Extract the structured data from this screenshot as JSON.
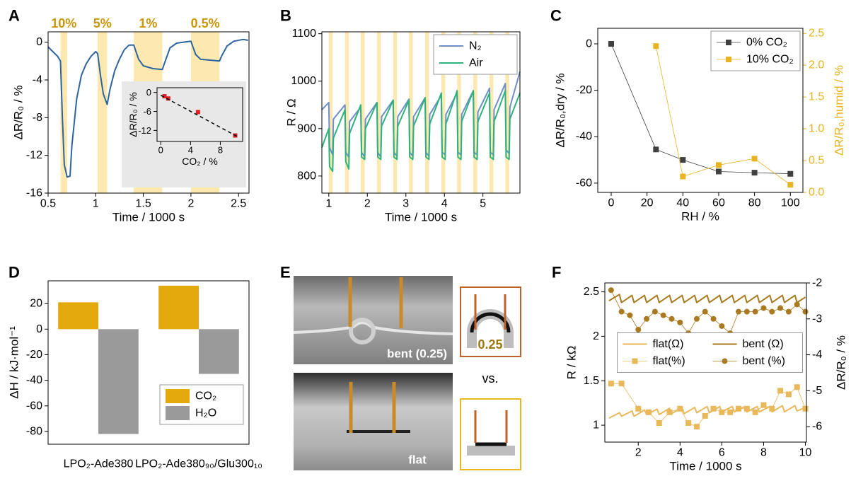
{
  "chart_data": [
    {
      "label": "A",
      "type": "line",
      "xlim": [
        0.5,
        2.61
      ],
      "xticks": [
        0.5,
        1,
        1.5,
        2,
        2.5
      ],
      "ylim": [
        -16,
        1.1
      ],
      "yticks": [
        0,
        -4,
        -8,
        -12,
        -16
      ],
      "xlabel": "Time / 1000 s",
      "ylabel": "ΔR/R₀ / %",
      "shaded_regions": [
        [
          0.63,
          0.7
        ],
        [
          1.02,
          1.12
        ],
        [
          1.4,
          1.7
        ],
        [
          2.0,
          2.3
        ]
      ],
      "shade_color": "#fde9b0",
      "region_labels": [
        "10%",
        "5%",
        "1%",
        "0.5%"
      ],
      "region_label_color": "#c8960c",
      "series": [
        {
          "color": "#2e64a0",
          "x": [
            0.5,
            0.55,
            0.6,
            0.63,
            0.65,
            0.67,
            0.7,
            0.73,
            0.75,
            0.8,
            0.85,
            0.9,
            0.95,
            1.0,
            1.02,
            1.05,
            1.08,
            1.12,
            1.15,
            1.2,
            1.25,
            1.3,
            1.35,
            1.4,
            1.45,
            1.5,
            1.6,
            1.7,
            1.72,
            1.78,
            1.85,
            2.0,
            2.05,
            2.1,
            2.2,
            2.3,
            2.32,
            2.38,
            2.45,
            2.55,
            2.6
          ],
          "values": [
            -0.5,
            -1,
            -1.5,
            -2,
            -8,
            -13,
            -14.3,
            -14.2,
            -11,
            -6,
            -3.5,
            -2.3,
            -1.5,
            -1,
            -1.2,
            -3.5,
            -5.5,
            -6.6,
            -5,
            -3,
            -1.8,
            -0.8,
            -0.3,
            -0.3,
            -1.8,
            -2.5,
            -2.8,
            -2.9,
            -2.3,
            -0.6,
            -0.1,
            0.1,
            -1.3,
            -1.8,
            -1.9,
            -2,
            -1.5,
            -0.4,
            0.1,
            0.3,
            0.2
          ]
        }
      ],
      "inset": {
        "type": "scatter",
        "background": "#e8e8e8",
        "xlim": [
          -0.5,
          11
        ],
        "xticks": [
          0,
          4,
          8
        ],
        "ylim": [
          -15.5,
          1.5
        ],
        "yticks": [
          0,
          -6,
          -12
        ],
        "xlabel": "CO₂ / %",
        "ylabel": "ΔR/R₀ / %",
        "series": [
          {
            "color": "#e02020",
            "marker": "square",
            "x": [
              0.5,
              1,
              5,
              10
            ],
            "values": [
              -1.2,
              -1.9,
              -6.2,
              -13.6
            ]
          }
        ],
        "fit": {
          "x": [
            0,
            10.5
          ],
          "values": [
            -0.9,
            -14.2
          ]
        }
      }
    },
    {
      "label": "B",
      "type": "line",
      "xlim": [
        0.82,
        5.96
      ],
      "xticks": [
        1,
        2,
        3,
        4,
        5
      ],
      "ylim": [
        764,
        1104
      ],
      "yticks": [
        800,
        900,
        1000,
        1100
      ],
      "xlabel": "Time / 1000 s",
      "ylabel": "R / Ω",
      "shaded_regions": [
        [
          1.0,
          1.1
        ],
        [
          1.42,
          1.52
        ],
        [
          1.83,
          1.93
        ],
        [
          2.25,
          2.35
        ],
        [
          2.67,
          2.77
        ],
        [
          3.08,
          3.18
        ],
        [
          3.5,
          3.6
        ],
        [
          3.92,
          4.02
        ],
        [
          4.33,
          4.43
        ],
        [
          4.75,
          4.85
        ],
        [
          5.17,
          5.27
        ],
        [
          5.58,
          5.68
        ]
      ],
      "shade_color": "#fde9b0",
      "legend": "upper right",
      "x": [
        0.82,
        1.0,
        1.02,
        1.1,
        1.12,
        1.42,
        1.44,
        1.52,
        1.54,
        1.83,
        1.85,
        1.93,
        1.95,
        2.25,
        2.27,
        2.35,
        2.37,
        2.67,
        2.69,
        2.77,
        2.79,
        3.08,
        3.1,
        3.18,
        3.2,
        3.5,
        3.52,
        3.6,
        3.62,
        3.92,
        3.94,
        4.02,
        4.04,
        4.33,
        4.35,
        4.43,
        4.45,
        4.75,
        4.77,
        4.85,
        4.87,
        5.17,
        5.19,
        5.27,
        5.29,
        5.58,
        5.6,
        5.68,
        5.7,
        5.96
      ],
      "series": [
        {
          "name": "N₂",
          "color": "#6e8fc8",
          "values": [
            940,
            955,
            860,
            845,
            920,
            950,
            850,
            840,
            915,
            945,
            850,
            840,
            920,
            955,
            850,
            840,
            925,
            960,
            850,
            842,
            925,
            962,
            850,
            842,
            925,
            965,
            850,
            842,
            930,
            970,
            850,
            845,
            930,
            975,
            850,
            845,
            930,
            980,
            850,
            845,
            935,
            985,
            850,
            845,
            940,
            995,
            855,
            848,
            945,
            1020
          ]
        },
        {
          "name": "Air",
          "color": "#2fb37c",
          "values": [
            860,
            900,
            820,
            810,
            880,
            940,
            830,
            815,
            890,
            950,
            840,
            835,
            900,
            955,
            840,
            835,
            905,
            960,
            840,
            835,
            905,
            960,
            840,
            835,
            905,
            965,
            840,
            835,
            910,
            975,
            840,
            835,
            910,
            980,
            840,
            835,
            915,
            980,
            840,
            835,
            915,
            975,
            840,
            835,
            915,
            980,
            840,
            835,
            920,
            975
          ]
        }
      ]
    },
    {
      "label": "C",
      "type": "line",
      "xlim": [
        -7.5,
        107
      ],
      "xticks": [
        0,
        20,
        40,
        60,
        80,
        100
      ],
      "ylim": [
        -64,
        6.7
      ],
      "yticks": [
        0,
        -20,
        -40,
        -60
      ],
      "y2lim": [
        0,
        2.58
      ],
      "y2ticks": [
        {
          "value": 0,
          "label": "0.0"
        },
        0.5,
        {
          "value": 1,
          "label": "1.0"
        },
        1.5,
        {
          "value": 2,
          "label": "2.0"
        },
        2.5
      ],
      "y2color": "#e8b420",
      "xlabel": "RH / %",
      "ylabel": "ΔR/R₀,dry / %",
      "y2label": "ΔR/R₀,humid / %",
      "legend": "upper right",
      "series": [
        {
          "name": "0% CO₂",
          "color": "#404040",
          "marker": "square",
          "line_width": 0.8,
          "x": [
            0,
            25,
            40,
            60,
            80,
            100
          ],
          "values": [
            0,
            -45.5,
            -50,
            -55,
            -55.5,
            -56
          ]
        },
        {
          "name": "10% CO₂",
          "color": "#e8b420",
          "marker": "square",
          "line_width": 0.8,
          "axis": "y2",
          "x": [
            25,
            40,
            60,
            80,
            100
          ],
          "values": [
            2.3,
            0.25,
            0.43,
            0.53,
            0.12
          ]
        }
      ]
    },
    {
      "label": "D",
      "type": "bar",
      "categories": [
        "LPO₂-Ade380",
        "LPO₂-Ade380₉₀/Glu300₁₀"
      ],
      "ylim": [
        -90,
        37.8
      ],
      "yticks": [
        20,
        0,
        -20,
        -40,
        -60,
        -80
      ],
      "ylabel": "ΔH / kJ·mol⁻¹",
      "legend": "lower right",
      "series": [
        {
          "name": "CO₂",
          "color": "#e3a80c",
          "values": [
            21,
            34
          ]
        },
        {
          "name": "H₂O",
          "color": "#9a9a9a",
          "values": [
            -82,
            -35
          ]
        }
      ]
    },
    {
      "label": "F",
      "type": "line",
      "xlim": [
        0.4,
        10.05
      ],
      "xticks": [
        2,
        4,
        6,
        8,
        10
      ],
      "ylim": [
        0.81,
        2.6
      ],
      "yticks": [
        1,
        1.5,
        2,
        2.5
      ],
      "y2lim": [
        -6.43,
        -2
      ],
      "y2ticks": [
        -2,
        -3,
        -4,
        -5,
        -6
      ],
      "xlabel": "Time / 1000 s",
      "ylabel": "R / kΩ",
      "y2label": "ΔR/R₀ / %",
      "legend": "center",
      "legend_columns": 2,
      "series": [
        {
          "name": "flat(Ω)",
          "color": "#e8b85a",
          "x": [
            0.6,
            1.1,
            1.2,
            1.7,
            1.8,
            2.3,
            2.4,
            2.9,
            3.0,
            3.5,
            3.6,
            4.1,
            4.2,
            4.7,
            4.8,
            5.3,
            5.4,
            5.9,
            6.0,
            6.5,
            6.6,
            7.1,
            7.2,
            7.7,
            7.8,
            8.3,
            8.4,
            8.9,
            9.0,
            9.5,
            9.6,
            10.0
          ],
          "values": [
            1.08,
            1.14,
            1.1,
            1.16,
            1.1,
            1.17,
            1.12,
            1.18,
            1.12,
            1.19,
            1.13,
            1.2,
            1.13,
            1.2,
            1.14,
            1.21,
            1.14,
            1.21,
            1.15,
            1.21,
            1.15,
            1.21,
            1.15,
            1.21,
            1.15,
            1.21,
            1.15,
            1.22,
            1.15,
            1.22,
            1.16,
            1.2
          ]
        },
        {
          "name": "bent (Ω)",
          "color": "#a97a20",
          "x": [
            0.6,
            1.1,
            1.2,
            1.7,
            1.8,
            2.3,
            2.4,
            2.9,
            3.0,
            3.5,
            3.6,
            4.1,
            4.2,
            4.7,
            4.8,
            5.3,
            5.4,
            5.9,
            6.0,
            6.5,
            6.6,
            7.1,
            7.2,
            7.7,
            7.8,
            8.3,
            8.4,
            8.9,
            9.0,
            9.5,
            9.6,
            10.0
          ],
          "values": [
            2.4,
            2.47,
            2.38,
            2.46,
            2.38,
            2.46,
            2.38,
            2.46,
            2.38,
            2.46,
            2.38,
            2.46,
            2.38,
            2.46,
            2.38,
            2.46,
            2.38,
            2.46,
            2.38,
            2.46,
            2.38,
            2.46,
            2.38,
            2.46,
            2.38,
            2.46,
            2.38,
            2.46,
            2.38,
            2.46,
            2.38,
            2.44
          ]
        },
        {
          "name": "flat(%)",
          "color": "#e8b85a",
          "marker": "square",
          "line_width": 0.8,
          "axis": "y2",
          "x": [
            0.7,
            1.2,
            2.0,
            2.5,
            3.0,
            3.5,
            4.0,
            4.4,
            4.8,
            5.2,
            5.6,
            6.0,
            6.4,
            6.8,
            7.2,
            7.6,
            8.0,
            8.4,
            8.8,
            9.2,
            9.6,
            10.0
          ],
          "values": [
            -4.8,
            -4.8,
            -5.5,
            -5.6,
            -5.9,
            -5.6,
            -5.5,
            -5.9,
            -6.0,
            -5.7,
            -5.5,
            -5.6,
            -5.6,
            -5.5,
            -5.5,
            -5.6,
            -5.4,
            -5.5,
            -5.0,
            -5.1,
            -4.9,
            -5.5
          ]
        },
        {
          "name": "bent (%)",
          "color": "#a97a20",
          "marker": "circle",
          "line_width": 0.8,
          "axis": "y2",
          "x": [
            0.7,
            1.2,
            1.6,
            2.0,
            2.4,
            2.8,
            3.2,
            3.6,
            4.0,
            4.4,
            4.8,
            5.2,
            5.6,
            6.0,
            6.4,
            6.8,
            7.2,
            7.6,
            8.0,
            8.4,
            8.8,
            9.2,
            9.6,
            10.0
          ],
          "values": [
            -2.2,
            -2.8,
            -2.9,
            -3.3,
            -3.0,
            -2.8,
            -2.9,
            -3.0,
            -3.1,
            -3.4,
            -3.0,
            -2.8,
            -3.0,
            -3.2,
            -3.4,
            -2.8,
            -2.8,
            -2.8,
            -2.7,
            -2.8,
            -2.7,
            -2.8,
            -2.6,
            -2.8
          ]
        }
      ]
    }
  ],
  "panel_e": {
    "label": "E",
    "top_photo_label": "bent (0.25)",
    "bottom_photo_label": "flat",
    "inset_value_label": "0.25",
    "comparison": "vs."
  }
}
